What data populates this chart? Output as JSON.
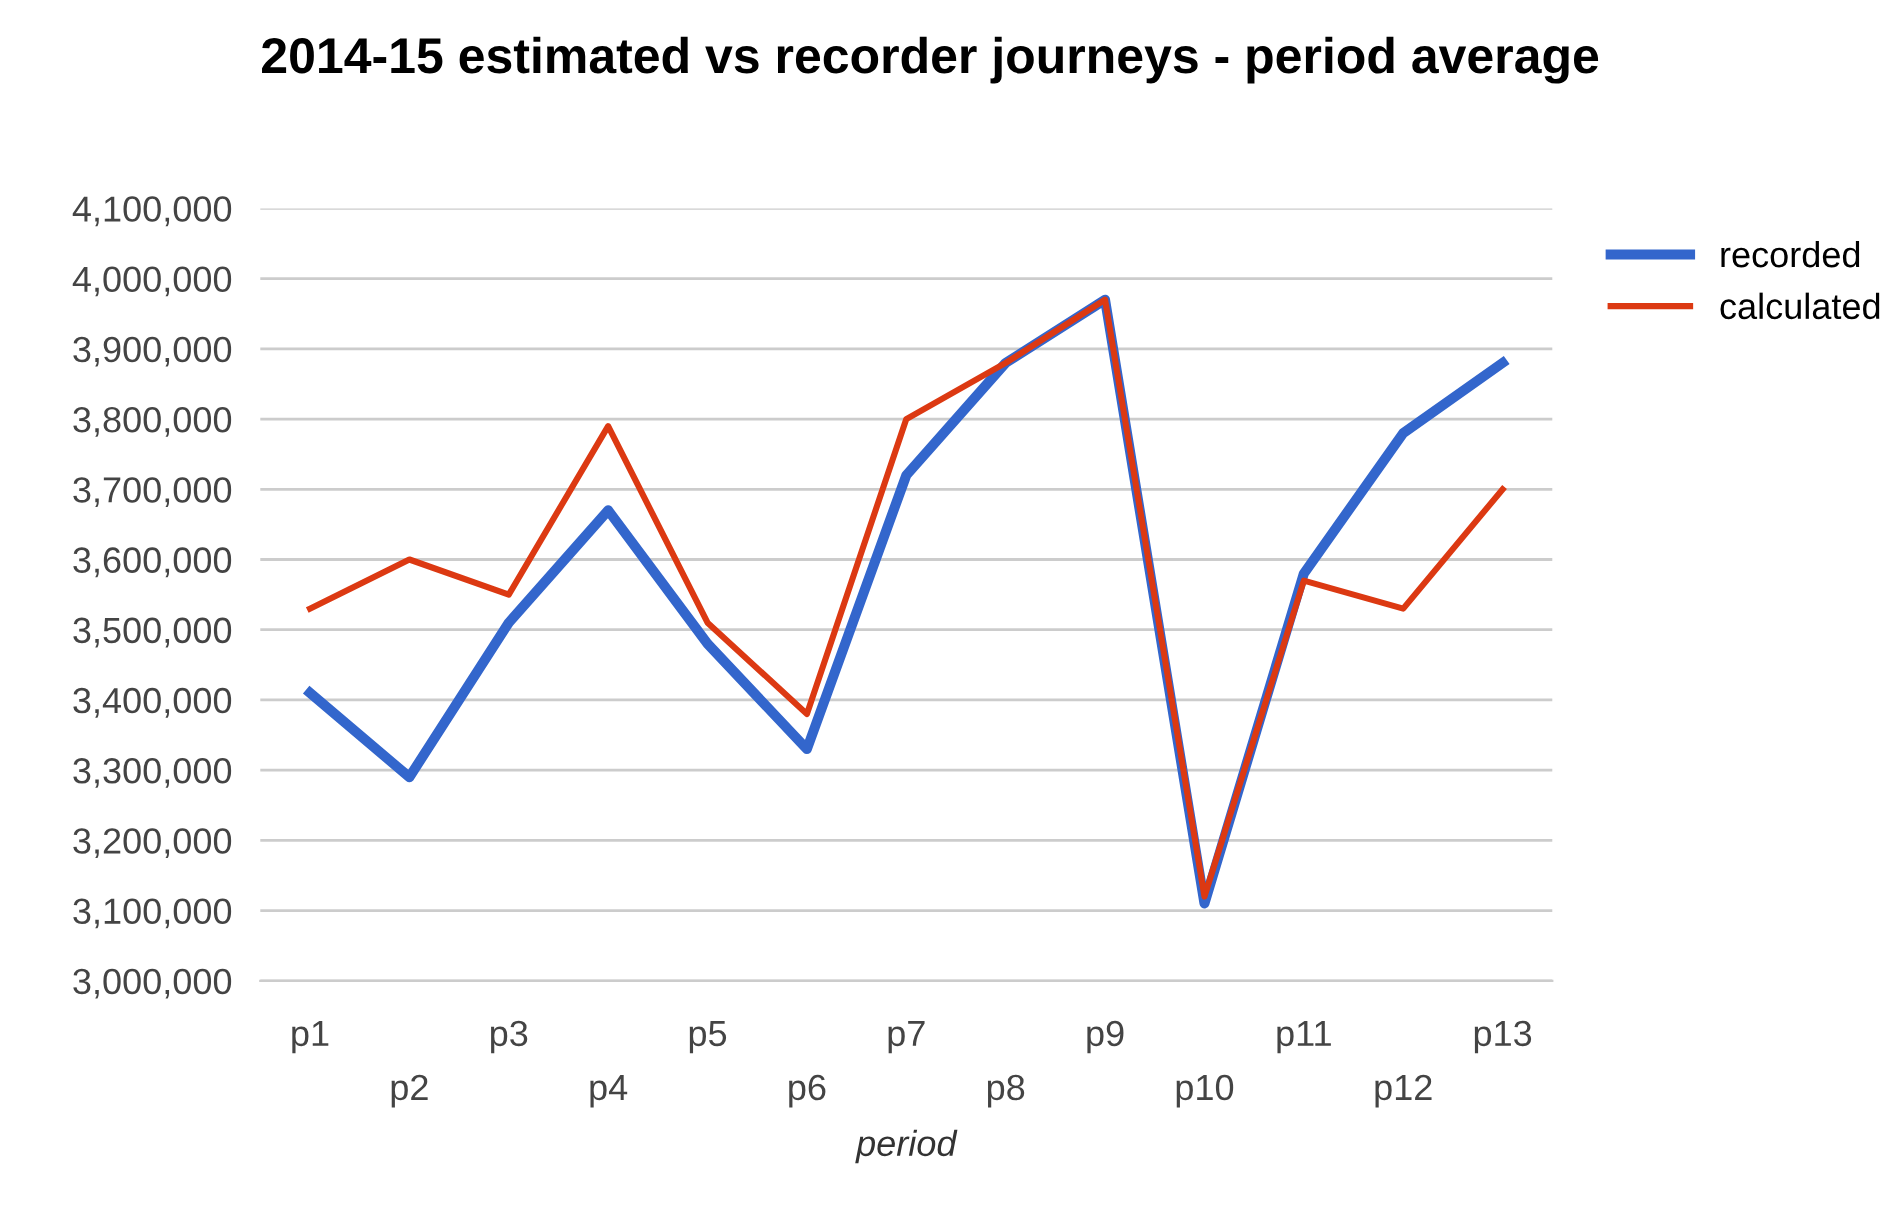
{
  "chart_data": {
    "type": "line",
    "title": "2014-15 estimated vs recorder journeys - period average",
    "xlabel": "period",
    "categories": [
      "p1",
      "p2",
      "p3",
      "p4",
      "p5",
      "p6",
      "p7",
      "p8",
      "p9",
      "p10",
      "p11",
      "p12",
      "p13"
    ],
    "series": [
      {
        "name": "recorded",
        "color": "#3366cc",
        "values": [
          3410000,
          3290000,
          3510000,
          3670000,
          3480000,
          3330000,
          3720000,
          3880000,
          3970000,
          3110000,
          3580000,
          3780000,
          3880000
        ]
      },
      {
        "name": "calculated",
        "color": "#dc3912",
        "values": [
          3530000,
          3600000,
          3550000,
          3790000,
          3510000,
          3380000,
          3800000,
          3880000,
          3970000,
          3120000,
          3570000,
          3530000,
          3700000
        ]
      }
    ],
    "ylim": [
      3000000,
      4100000
    ],
    "yticks": [
      {
        "value": 3000000,
        "label": "3,000,000"
      },
      {
        "value": 3100000,
        "label": "3,100,000"
      },
      {
        "value": 3200000,
        "label": "3,200,000"
      },
      {
        "value": 3300000,
        "label": "3,300,000"
      },
      {
        "value": 3400000,
        "label": "3,400,000"
      },
      {
        "value": 3500000,
        "label": "3,500,000"
      },
      {
        "value": 3600000,
        "label": "3,600,000"
      },
      {
        "value": 3700000,
        "label": "3,700,000"
      },
      {
        "value": 3800000,
        "label": "3,800,000"
      },
      {
        "value": 3900000,
        "label": "3,900,000"
      },
      {
        "value": 4000000,
        "label": "4,000,000"
      },
      {
        "value": 4100000,
        "label": "4,100,000"
      }
    ],
    "grid": "y",
    "legend": "top right",
    "marker": "none",
    "line_style": "solid"
  }
}
